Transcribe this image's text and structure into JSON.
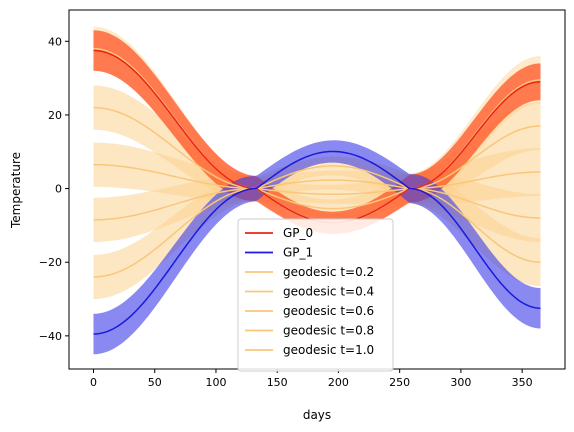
{
  "chart_data": {
    "type": "line",
    "xlabel": "days",
    "ylabel": "Temperature",
    "xlim": [
      -20,
      385
    ],
    "ylim": [
      -49,
      48.5
    ],
    "x_ticks": [
      0,
      50,
      100,
      150,
      200,
      250,
      300,
      350
    ],
    "y_ticks": [
      -40,
      -20,
      0,
      20,
      40
    ],
    "legend_position": "lower-center",
    "legend": [
      {
        "label": "GP_0",
        "color": "#e8251a"
      },
      {
        "label": "GP_1",
        "color": "#1a1adb"
      },
      {
        "label": "geodesic t=0.2",
        "color": "#f9c77a"
      },
      {
        "label": "geodesic t=0.4",
        "color": "#f9c77a"
      },
      {
        "label": "geodesic t=0.6",
        "color": "#f9c77a"
      },
      {
        "label": "geodesic t=0.8",
        "color": "#f9c77a"
      },
      {
        "label": "geodesic t=1.0",
        "color": "#f9c77a"
      }
    ],
    "series": [
      {
        "name": "GP_0",
        "kind": "mean-with-band",
        "line_color": "#e8251a",
        "band_color": "#ff5a2a",
        "band_opacity": 0.78,
        "start": 37.5,
        "end": 29,
        "band_start": 5.5,
        "band_mid": 3.0,
        "band_end": 5.0,
        "crossings": [
          133,
          258
        ]
      },
      {
        "name": "GP_1",
        "kind": "mean-with-band",
        "line_color": "#1a1adb",
        "band_color": "#3a3ae8",
        "band_opacity": 0.6,
        "start": -39.5,
        "end": -32.5,
        "band_start": 5.5,
        "band_mid": 3.0,
        "band_end": 5.5,
        "crossings": [
          133,
          258
        ]
      },
      {
        "name": "geodesic t=0.2",
        "kind": "mean-with-band",
        "line_color": "#f9c77a",
        "band_color": "#fbd28f",
        "band_opacity": 0.55,
        "start": 22,
        "end": 17,
        "band_start": 6,
        "band_mid": 2.5,
        "band_end": 6.5,
        "crossings": [
          133,
          258
        ]
      },
      {
        "name": "geodesic t=0.4",
        "kind": "mean-with-band",
        "line_color": "#f9c77a",
        "band_color": "#fbd28f",
        "band_opacity": 0.55,
        "start": 6.5,
        "end": 4.5,
        "band_start": 6,
        "band_mid": 2.5,
        "band_end": 6.5,
        "crossings": [
          133,
          258
        ]
      },
      {
        "name": "geodesic t=0.6",
        "kind": "mean-with-band",
        "line_color": "#f9c77a",
        "band_color": "#fbd28f",
        "band_opacity": 0.55,
        "start": -8.5,
        "end": -8,
        "band_start": 6,
        "band_mid": 2.5,
        "band_end": 6.5,
        "crossings": [
          133,
          258
        ]
      },
      {
        "name": "geodesic t=0.8",
        "kind": "mean-with-band",
        "line_color": "#f9c77a",
        "band_color": "#fbd28f",
        "band_opacity": 0.55,
        "start": -24,
        "end": -20,
        "band_start": 6,
        "band_mid": 2.5,
        "band_end": 6.5,
        "crossings": [
          133,
          258
        ]
      },
      {
        "name": "geodesic t=1.0",
        "kind": "mean-with-band",
        "line_color": "#f9c77a",
        "band_color": "#fbd28f",
        "band_opacity": 0.45,
        "start": 38,
        "end": 29.5,
        "band_start": 6,
        "band_mid": 2.5,
        "band_end": 6.5,
        "crossings": [
          133,
          258
        ]
      }
    ]
  }
}
